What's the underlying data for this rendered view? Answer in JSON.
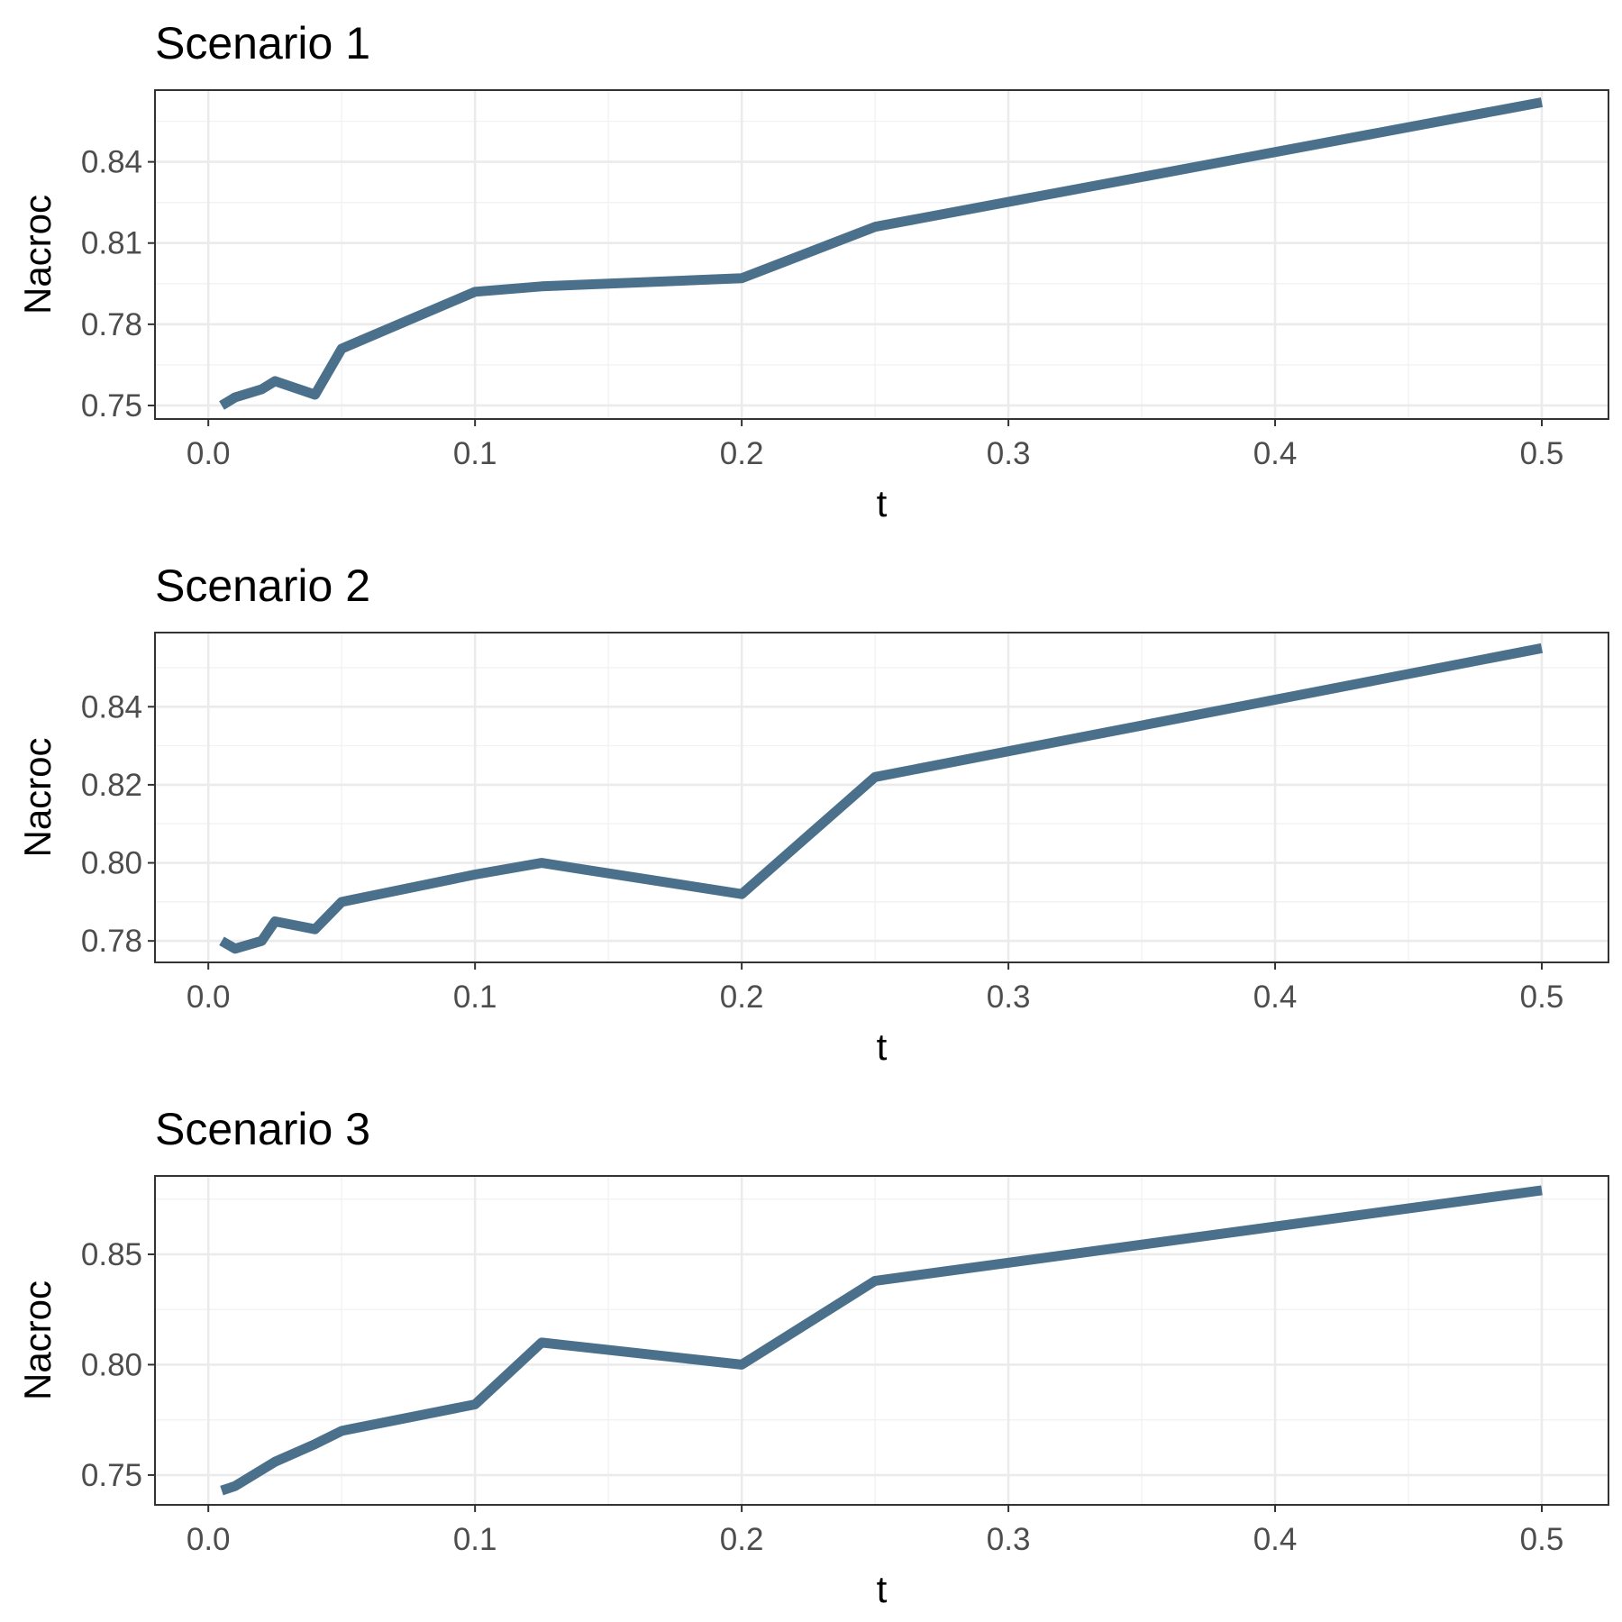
{
  "chart_data": [
    {
      "type": "line",
      "title": "Scenario 1",
      "xlabel": "t",
      "ylabel": "Nacroc",
      "xlim": [
        -0.02,
        0.525
      ],
      "ylim": [
        0.745,
        0.8665
      ],
      "xticks": [
        0.0,
        0.1,
        0.2,
        0.3,
        0.4,
        0.5
      ],
      "xtick_labels": [
        "0.0",
        "0.1",
        "0.2",
        "0.3",
        "0.4",
        "0.5"
      ],
      "yticks": [
        0.75,
        0.78,
        0.81,
        0.84
      ],
      "ytick_labels": [
        "0.75",
        "0.78",
        "0.81",
        "0.84"
      ],
      "grid": true,
      "line_color": "#4a708b",
      "series": [
        {
          "x": [
            0.005,
            0.01,
            0.02,
            0.025,
            0.04,
            0.05,
            0.1,
            0.125,
            0.2,
            0.25,
            0.5
          ],
          "y": [
            0.75,
            0.753,
            0.756,
            0.759,
            0.754,
            0.771,
            0.792,
            0.794,
            0.797,
            0.816,
            0.862
          ]
        }
      ]
    },
    {
      "type": "line",
      "title": "Scenario 2",
      "xlabel": "t",
      "ylabel": "Nacroc",
      "xlim": [
        -0.02,
        0.525
      ],
      "ylim": [
        0.7745,
        0.859
      ],
      "xticks": [
        0.0,
        0.1,
        0.2,
        0.3,
        0.4,
        0.5
      ],
      "xtick_labels": [
        "0.0",
        "0.1",
        "0.2",
        "0.3",
        "0.4",
        "0.5"
      ],
      "yticks": [
        0.78,
        0.8,
        0.82,
        0.84
      ],
      "ytick_labels": [
        "0.78",
        "0.80",
        "0.82",
        "0.84"
      ],
      "grid": true,
      "line_color": "#4a708b",
      "series": [
        {
          "x": [
            0.005,
            0.01,
            0.02,
            0.025,
            0.04,
            0.05,
            0.1,
            0.125,
            0.2,
            0.25,
            0.5
          ],
          "y": [
            0.78,
            0.778,
            0.78,
            0.785,
            0.783,
            0.79,
            0.797,
            0.8,
            0.792,
            0.822,
            0.855
          ]
        }
      ]
    },
    {
      "type": "line",
      "title": "Scenario 3",
      "xlabel": "t",
      "ylabel": "Nacroc",
      "xlim": [
        -0.02,
        0.525
      ],
      "ylim": [
        0.7365,
        0.8855
      ],
      "xticks": [
        0.0,
        0.1,
        0.2,
        0.3,
        0.4,
        0.5
      ],
      "xtick_labels": [
        "0.0",
        "0.1",
        "0.2",
        "0.3",
        "0.4",
        "0.5"
      ],
      "yticks": [
        0.75,
        0.8,
        0.85
      ],
      "ytick_labels": [
        "0.75",
        "0.80",
        "0.85"
      ],
      "grid": true,
      "line_color": "#4a708b",
      "series": [
        {
          "x": [
            0.005,
            0.01,
            0.025,
            0.04,
            0.05,
            0.1,
            0.125,
            0.2,
            0.25,
            0.5
          ],
          "y": [
            0.743,
            0.745,
            0.756,
            0.764,
            0.77,
            0.782,
            0.81,
            0.8,
            0.838,
            0.879
          ]
        }
      ]
    }
  ]
}
